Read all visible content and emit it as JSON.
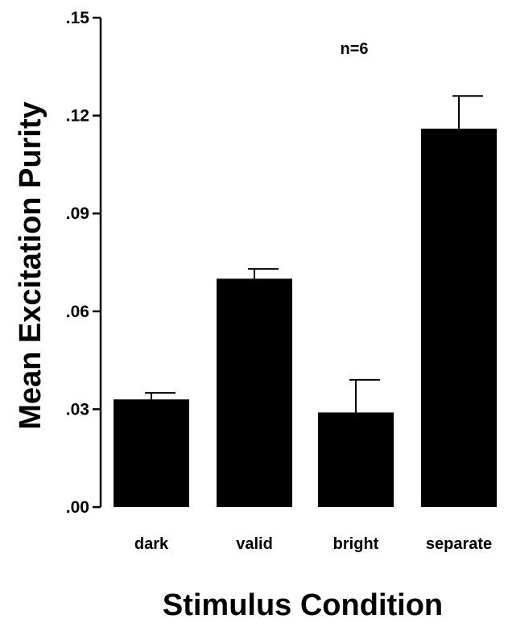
{
  "chart_data": {
    "type": "bar",
    "categories": [
      "dark",
      "valid",
      "bright",
      "separate"
    ],
    "values": [
      0.033,
      0.07,
      0.029,
      0.116
    ],
    "error": [
      0.002,
      0.003,
      0.01,
      0.01
    ],
    "ylim": [
      0,
      0.15
    ],
    "yticks": [
      ".00",
      ".03",
      ".06",
      ".09",
      ".12",
      ".15"
    ],
    "ytick_values": [
      0,
      0.03,
      0.06,
      0.09,
      0.12,
      0.15
    ],
    "xlabel": "Stimulus Condition",
    "ylabel": "Mean Excitation Purity",
    "annotation": "n=6",
    "bar_color": "#000000",
    "grid": false
  }
}
